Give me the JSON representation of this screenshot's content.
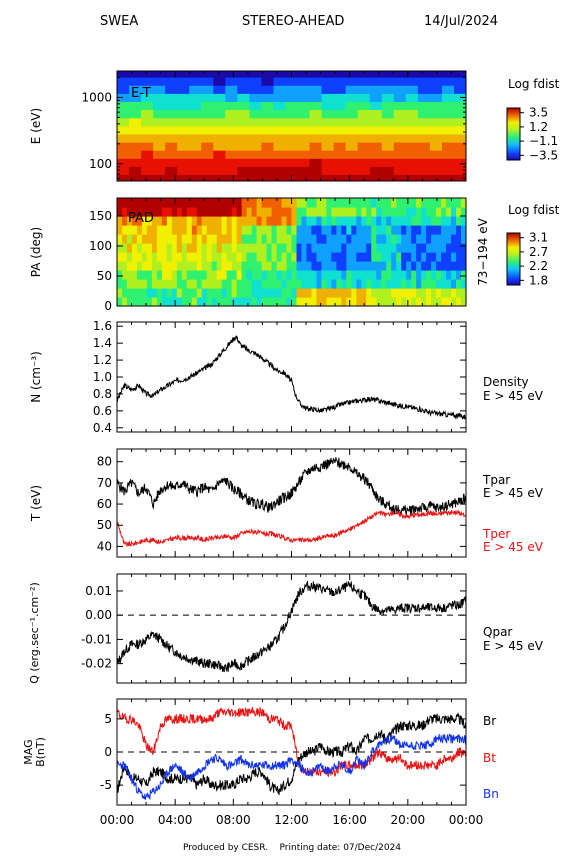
{
  "header": {
    "instrument": "SWEA",
    "spacecraft": "STEREO-AHEAD",
    "date": "14/Jul/2024"
  },
  "footer": {
    "produced_by": "Produced by CESR.",
    "printing_date": "Printing date: 07/Dec/2024"
  },
  "colors": {
    "black": "#000000",
    "red": "#ee1111",
    "blue": "#1133ee",
    "colormap": [
      "#1a0aa8",
      "#1040ff",
      "#10a0ff",
      "#10e0d0",
      "#30f070",
      "#b0f020",
      "#f0f000",
      "#f0b000",
      "#f06000",
      "#e81000",
      "#b00000"
    ]
  },
  "chart_data": [
    {
      "type": "heatmap",
      "panel": "E-T",
      "label": "E-T",
      "ylabel": "E (eV)",
      "yscale": "log",
      "yticks": [
        "1000",
        "100"
      ],
      "colorbar": {
        "title": "Log fdist",
        "ticks": [
          "3.5",
          "1.2",
          "−1.1",
          "−3.5"
        ],
        "range": [
          -3.5,
          3.5
        ]
      },
      "energy_bands_eV": [
        60,
        80,
        105,
        140,
        185,
        245,
        325,
        430,
        570,
        760,
        1000,
        1330,
        1760,
        2340
      ],
      "log_fdist_by_band": [
        3.4,
        3.1,
        2.7,
        2.3,
        1.8,
        1.3,
        0.8,
        0.2,
        -0.4,
        -1.0,
        -1.7,
        -2.4,
        -3.0,
        -3.4
      ]
    },
    {
      "type": "heatmap",
      "panel": "PAD",
      "label": "PAD",
      "ylabel": "PA (deg)",
      "ylim": [
        0,
        180
      ],
      "yticks": [
        "0",
        "50",
        "100",
        "150"
      ],
      "energy_label": "73−194 eV",
      "colorbar": {
        "title": "Log fdist",
        "ticks": [
          "3.1",
          "2.7",
          "2.2",
          "1.8"
        ],
        "range": [
          1.8,
          3.1
        ]
      }
    },
    {
      "type": "line",
      "panel": "density",
      "ylabel": "N (cm⁻³)",
      "ylim": [
        0.4,
        1.6
      ],
      "yticks": [
        "0.4",
        "0.6",
        "0.8",
        "1.0",
        "1.2",
        "1.4",
        "1.6"
      ],
      "series": [
        {
          "name": "Density",
          "sublabel": "E > 45 eV",
          "color": "#000000",
          "x": [
            0,
            0.5,
            1,
            1.5,
            2,
            2.5,
            3,
            3.5,
            4,
            4.5,
            5,
            5.5,
            6,
            6.5,
            7,
            7.5,
            8,
            8.2,
            8.5,
            9,
            9.5,
            10,
            10.5,
            11,
            11.5,
            12,
            12.3,
            12.6,
            13,
            13.5,
            14,
            14.5,
            15,
            15.5,
            16,
            16.5,
            17,
            17.5,
            18,
            18.5,
            19,
            19.5,
            20,
            20.5,
            21,
            21.5,
            22,
            22.5,
            23,
            23.5,
            24
          ],
          "y": [
            0.72,
            0.9,
            0.85,
            0.9,
            0.8,
            0.78,
            0.85,
            0.9,
            0.95,
            0.97,
            1.0,
            1.05,
            1.1,
            1.15,
            1.25,
            1.35,
            1.45,
            1.48,
            1.38,
            1.32,
            1.28,
            1.22,
            1.15,
            1.08,
            1.05,
            0.95,
            0.78,
            0.68,
            0.63,
            0.62,
            0.6,
            0.62,
            0.65,
            0.68,
            0.7,
            0.72,
            0.73,
            0.74,
            0.72,
            0.7,
            0.68,
            0.66,
            0.65,
            0.63,
            0.61,
            0.58,
            0.57,
            0.56,
            0.55,
            0.54,
            0.53
          ]
        }
      ]
    },
    {
      "type": "line",
      "panel": "temperature",
      "ylabel": "T (eV)",
      "ylim": [
        35,
        85
      ],
      "yticks": [
        "40",
        "50",
        "60",
        "70",
        "80"
      ],
      "series": [
        {
          "name": "Tpar",
          "sublabel": "E > 45 eV",
          "color": "#000000",
          "x": [
            0,
            0.5,
            1,
            1.5,
            2,
            2.5,
            3,
            3.5,
            4,
            4.5,
            5,
            5.5,
            6,
            6.5,
            7,
            7.5,
            8,
            8.5,
            9,
            9.5,
            10,
            10.5,
            11,
            11.5,
            12,
            12.5,
            13,
            13.5,
            14,
            14.5,
            15,
            15.5,
            16,
            16.5,
            17,
            17.5,
            18,
            18.5,
            19,
            19.5,
            20,
            20.5,
            21,
            21.5,
            22,
            22.5,
            23,
            23.5,
            24
          ],
          "y": [
            70,
            66,
            70,
            65,
            68,
            60,
            67,
            69,
            68,
            70,
            67,
            66,
            68,
            66,
            70,
            71,
            67,
            65,
            62,
            60,
            60,
            58,
            61,
            63,
            65,
            70,
            75,
            77,
            78,
            79,
            80,
            79,
            78,
            74,
            72,
            68,
            62,
            60,
            58,
            57,
            57,
            58,
            58,
            59,
            58,
            59,
            60,
            61,
            63
          ]
        },
        {
          "name": "Tper",
          "sublabel": "E > 45 eV",
          "color": "#ee1111",
          "x": [
            0,
            0.5,
            1,
            1.5,
            2,
            2.5,
            3,
            3.5,
            4,
            4.5,
            5,
            5.5,
            6,
            6.5,
            7,
            7.5,
            8,
            8.5,
            9,
            9.5,
            10,
            10.5,
            11,
            11.5,
            12,
            12.5,
            13,
            13.5,
            14,
            14.5,
            15,
            15.5,
            16,
            16.5,
            17,
            17.5,
            18,
            18.5,
            19,
            19.5,
            20,
            20.5,
            21,
            21.5,
            22,
            22.5,
            23,
            23.5,
            24
          ],
          "y": [
            52,
            41,
            41,
            42,
            43,
            43,
            42,
            43,
            44,
            44,
            44,
            44,
            43,
            44,
            44,
            45,
            44,
            46,
            47,
            47,
            46,
            46,
            45,
            44,
            43,
            43,
            43,
            43,
            44,
            45,
            45,
            47,
            48,
            50,
            52,
            54,
            56,
            55,
            56,
            55,
            54,
            55,
            55,
            56,
            55,
            56,
            56,
            56,
            54
          ]
        }
      ]
    },
    {
      "type": "line",
      "panel": "heat-flux",
      "ylabel": "Q (erg.sec⁻¹.cm⁻²)",
      "ylim": [
        -0.028,
        0.017
      ],
      "yticks": [
        "-0.02",
        "-0.01",
        "0.00",
        "0.01"
      ],
      "reference_line": 0,
      "series": [
        {
          "name": "Qpar",
          "sublabel": "E > 45 eV",
          "color": "#000000",
          "x": [
            0,
            0.5,
            1,
            1.5,
            2,
            2.5,
            3,
            3.5,
            4,
            4.5,
            5,
            5.5,
            6,
            6.5,
            7,
            7.5,
            8,
            8.5,
            9,
            9.5,
            10,
            10.5,
            11,
            11.5,
            12,
            12.5,
            13,
            13.5,
            14,
            14.5,
            15,
            15.5,
            16,
            16.5,
            17,
            17.5,
            18,
            18.5,
            19,
            19.5,
            20,
            20.5,
            21,
            21.5,
            22,
            22.5,
            23,
            23.5,
            24
          ],
          "y": [
            -0.02,
            -0.015,
            -0.012,
            -0.012,
            -0.01,
            -0.008,
            -0.01,
            -0.013,
            -0.015,
            -0.017,
            -0.018,
            -0.019,
            -0.02,
            -0.02,
            -0.021,
            -0.022,
            -0.02,
            -0.021,
            -0.019,
            -0.017,
            -0.015,
            -0.013,
            -0.01,
            -0.005,
            0.002,
            0.009,
            0.012,
            0.012,
            0.011,
            0.01,
            0.009,
            0.011,
            0.012,
            0.01,
            0.008,
            0.004,
            0.002,
            0.002,
            0.002,
            0.003,
            0.003,
            0.003,
            0.003,
            0.003,
            0.003,
            0.003,
            0.004,
            0.004,
            0.006
          ]
        }
      ]
    },
    {
      "type": "line",
      "panel": "magnetic-field",
      "ylabel": "MAG B(nT)",
      "ylim": [
        -8,
        8
      ],
      "yticks": [
        "-5",
        "0",
        "5"
      ],
      "reference_line": 0,
      "xticks": [
        "00:00",
        "04:00",
        "08:00",
        "12:00",
        "16:00",
        "20:00",
        "00:00"
      ],
      "xlim": [
        0,
        24
      ],
      "series": [
        {
          "name": "Br",
          "color": "#000000",
          "x": [
            0,
            0.5,
            1,
            1.5,
            2,
            2.5,
            3,
            3.5,
            4,
            4.5,
            5,
            5.5,
            6,
            6.5,
            7,
            7.5,
            8,
            8.5,
            9,
            9.5,
            10,
            10.5,
            11,
            11.5,
            12,
            12.5,
            13,
            13.5,
            14,
            14.5,
            15,
            15.5,
            16,
            16.5,
            17,
            17.5,
            18,
            18.5,
            19,
            19.5,
            20,
            20.5,
            21,
            21.5,
            22,
            22.5,
            23,
            23.5,
            24
          ],
          "y": [
            -6,
            -2,
            -4,
            -4,
            -5,
            -3,
            -3,
            -4,
            -4,
            -4,
            -4,
            -5,
            -4,
            -5,
            -5,
            -5,
            -5,
            -4,
            -4,
            -3,
            -3,
            -5,
            -6,
            -5,
            -4,
            -1,
            0,
            0,
            1,
            0,
            0,
            0,
            1,
            0,
            2,
            2,
            3,
            2,
            3,
            4,
            4,
            4,
            4,
            5,
            5,
            5,
            5,
            5,
            4
          ]
        },
        {
          "name": "Bt",
          "color": "#ee1111",
          "x": [
            0,
            0.5,
            1,
            1.5,
            2,
            2.5,
            3,
            3.5,
            4,
            4.5,
            5,
            5.5,
            6,
            6.5,
            7,
            7.5,
            8,
            8.5,
            9,
            9.5,
            10,
            10.5,
            11,
            11.5,
            12,
            12.5,
            13,
            13.5,
            14,
            14.5,
            15,
            15.5,
            16,
            16.5,
            17,
            17.5,
            18,
            18.5,
            19,
            19.5,
            20,
            20.5,
            21,
            21.5,
            22,
            22.5,
            23,
            23.5,
            24
          ],
          "y": [
            6,
            5,
            5,
            4,
            1,
            0,
            4,
            5,
            5,
            5,
            5,
            5,
            5,
            5,
            6,
            6,
            6,
            6,
            6,
            6,
            6,
            5,
            5,
            4,
            4,
            -2,
            -3,
            -3,
            -3,
            -3,
            -3,
            -2,
            -2,
            -2,
            -2,
            -1,
            0,
            -1,
            -1,
            -1,
            -2,
            -2,
            -2,
            -2,
            -2,
            -1,
            -1,
            0,
            0
          ]
        },
        {
          "name": "Bn",
          "color": "#1133ee",
          "x": [
            0,
            0.5,
            1,
            1.5,
            2,
            2.5,
            3,
            3.5,
            4,
            4.5,
            5,
            5.5,
            6,
            6.5,
            7,
            7.5,
            8,
            8.5,
            9,
            9.5,
            10,
            10.5,
            11,
            11.5,
            12,
            12.5,
            13,
            13.5,
            14,
            14.5,
            15,
            15.5,
            16,
            16.5,
            17,
            17.5,
            18,
            18.5,
            19,
            19.5,
            20,
            20.5,
            21,
            21.5,
            22,
            22.5,
            23,
            23.5,
            24
          ],
          "y": [
            -2,
            -2,
            -4,
            -6,
            -7,
            -6,
            -5,
            -3,
            -2,
            -3,
            -4,
            -3,
            -2,
            -1,
            -1,
            -2,
            -2,
            -1,
            -2,
            -2,
            -2,
            -2,
            -2,
            -2,
            -1,
            -2,
            -3,
            -3,
            -2,
            -3,
            -2,
            -2,
            -3,
            -1,
            -2,
            0,
            1,
            2,
            2,
            1,
            1,
            1,
            1,
            1,
            2,
            2,
            2,
            2,
            2
          ]
        }
      ]
    }
  ]
}
